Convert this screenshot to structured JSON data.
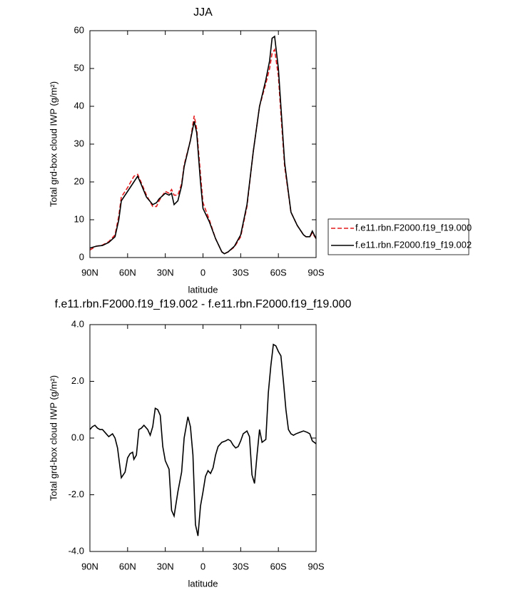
{
  "chart_data": [
    {
      "type": "line",
      "title": "JJA",
      "xlabel": "latitude",
      "ylabel": "Total grd-box cloud IWP (g/m²)",
      "x": [
        90,
        85,
        80,
        75,
        70,
        67,
        65,
        60,
        55,
        52,
        50,
        45,
        40,
        37,
        35,
        30,
        27,
        25,
        23,
        20,
        17,
        15,
        10,
        7,
        5,
        2,
        0,
        -5,
        -10,
        -15,
        -17,
        -20,
        -25,
        -30,
        -35,
        -40,
        -45,
        -50,
        -53,
        -55,
        -57,
        -60,
        -62,
        -65,
        -70,
        -75,
        -80,
        -82,
        -85,
        -87,
        -90
      ],
      "series": [
        {
          "name": "f.e11.rbn.F2000.f19_f19.000",
          "color": "#e41a1c",
          "linestyle": "dashed",
          "values": [
            2,
            3,
            3.3,
            4.2,
            6,
            11,
            16,
            18.5,
            21.5,
            22,
            20.5,
            16.5,
            13.5,
            13.5,
            15,
            17.5,
            17,
            18,
            16.5,
            16.5,
            19.5,
            24.5,
            31,
            37.5,
            34,
            22,
            14.5,
            10,
            5,
            1.5,
            1,
            1.5,
            2.8,
            5.5,
            13.5,
            28,
            40,
            46,
            50,
            54,
            55,
            48,
            38,
            24,
            12,
            8.5,
            6,
            5.5,
            5.5,
            6.5,
            5
          ]
        },
        {
          "name": "f.e11.rbn.F2000.f19_f19.002",
          "color": "#000000",
          "linestyle": "solid",
          "values": [
            2.5,
            3,
            3.2,
            4,
            5.5,
            10,
            15,
            17.5,
            20,
            21.5,
            20,
            16,
            14,
            14.5,
            15.5,
            17,
            16.5,
            17,
            14,
            15,
            19,
            24,
            31,
            36,
            33,
            20,
            13,
            9.5,
            5,
            1.5,
            1,
            1.5,
            3,
            6,
            14,
            28,
            40,
            47,
            52,
            58,
            58.5,
            50,
            40,
            25,
            12,
            8.5,
            6,
            5.5,
            5.5,
            7,
            5
          ]
        }
      ],
      "xlim": [
        90,
        -90
      ],
      "xticks": [
        {
          "value": 90,
          "label": "90N"
        },
        {
          "value": 60,
          "label": "60N"
        },
        {
          "value": 30,
          "label": "30N"
        },
        0,
        {
          "value": -30,
          "label": "30S"
        },
        {
          "value": -60,
          "label": "60S"
        },
        {
          "value": -90,
          "label": "90S"
        }
      ],
      "ylim": [
        0,
        60
      ],
      "yticks": [
        0,
        10,
        20,
        30,
        40,
        50,
        60
      ],
      "legend": "right"
    },
    {
      "type": "line",
      "title": "f.e11.rbn.F2000.f19_f19.002 - f.e11.rbn.F2000.f19_f19.000",
      "xlabel": "latitude",
      "ylabel": "Total grd-box cloud IWP (g/m²)",
      "x": [
        90,
        88,
        86,
        84,
        82,
        80,
        77,
        75,
        72,
        70,
        68,
        65,
        62,
        60,
        58,
        56,
        55,
        53,
        51,
        49,
        47,
        44,
        42,
        40,
        38,
        36,
        34,
        32,
        30,
        27,
        25,
        23,
        20,
        17,
        15,
        12,
        10,
        8,
        6,
        4,
        2,
        0,
        -2,
        -4,
        -6,
        -8,
        -10,
        -12,
        -15,
        -18,
        -20,
        -22,
        -24,
        -26,
        -28,
        -30,
        -32,
        -35,
        -37,
        -39,
        -41,
        -43,
        -45,
        -47,
        -50,
        -52,
        -54,
        -56,
        -58,
        -60,
        -62,
        -64,
        -66,
        -68,
        -70,
        -72,
        -74,
        -77,
        -80,
        -83,
        -85,
        -87,
        -90
      ],
      "series": [
        {
          "color": "#000000",
          "linestyle": "solid",
          "values": [
            0.3,
            0.4,
            0.45,
            0.35,
            0.3,
            0.3,
            0.15,
            0.05,
            0.15,
            0,
            -0.35,
            -1.4,
            -1.2,
            -0.7,
            -0.55,
            -0.5,
            -0.75,
            -0.6,
            0.3,
            0.35,
            0.45,
            0.3,
            0.1,
            0.4,
            1.05,
            1.0,
            0.8,
            -0.3,
            -0.8,
            -1.1,
            -2.55,
            -2.75,
            -1.9,
            -1.2,
            0,
            0.75,
            0.4,
            -0.6,
            -3.05,
            -3.45,
            -2.4,
            -1.9,
            -1.35,
            -1.15,
            -1.25,
            -1.05,
            -0.6,
            -0.3,
            -0.15,
            -0.1,
            -0.05,
            -0.1,
            -0.25,
            -0.35,
            -0.3,
            -0.1,
            0.15,
            0.25,
            0.05,
            -1.3,
            -1.6,
            -0.6,
            0.3,
            -0.15,
            -0.05,
            1.6,
            2.55,
            3.3,
            3.25,
            3.05,
            2.9,
            2.0,
            1.0,
            0.3,
            0.15,
            0.1,
            0.15,
            0.2,
            0.25,
            0.2,
            0.15,
            -0.1,
            -0.2
          ]
        }
      ],
      "xlim": [
        90,
        -90
      ],
      "xticks": [
        {
          "value": 90,
          "label": "90N"
        },
        {
          "value": 60,
          "label": "60N"
        },
        {
          "value": 30,
          "label": "30N"
        },
        0,
        {
          "value": -30,
          "label": "30S"
        },
        {
          "value": -60,
          "label": "60S"
        },
        {
          "value": -90,
          "label": "90S"
        }
      ],
      "ylim": [
        -4,
        4
      ],
      "yticks": [
        {
          "value": -4,
          "label": "-4.0"
        },
        {
          "value": -2,
          "label": "-2.0"
        },
        {
          "value": 0,
          "label": "0.0"
        },
        {
          "value": 2,
          "label": "2.0"
        },
        {
          "value": 4,
          "label": "4.0"
        }
      ]
    }
  ]
}
